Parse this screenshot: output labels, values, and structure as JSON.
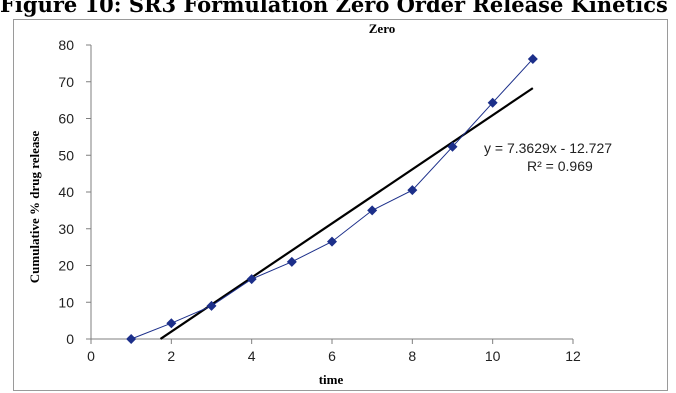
{
  "figure_caption": "Figure 10: SR3 Formulation Zero Order Release Kinetics",
  "chart_data": {
    "type": "scatter",
    "title": "Zero",
    "xlabel": "time",
    "ylabel": "Cumulative % drug release",
    "xlim": [
      0,
      12
    ],
    "ylim": [
      0,
      80
    ],
    "x_ticks": [
      0,
      2,
      4,
      6,
      8,
      10,
      12
    ],
    "y_ticks": [
      0,
      10,
      20,
      30,
      40,
      50,
      60,
      70,
      80
    ],
    "grid": false,
    "series": [
      {
        "x": [
          1,
          2,
          3,
          4,
          5,
          6,
          7,
          8,
          9,
          10,
          11
        ],
        "y": [
          0,
          4.3,
          9,
          16.3,
          21,
          26.5,
          35,
          40.5,
          52.3,
          64.3,
          76.2
        ],
        "color": "#1c2f8a",
        "marker": "diamond",
        "line": "straight"
      }
    ],
    "trendline": {
      "type": "linear",
      "slope": 7.3629,
      "intercept": -12.727,
      "x_range": [
        1.73,
        11
      ],
      "color": "#000000",
      "equation": "y = 7.3629x - 12.727",
      "r_squared": "R² = 0.969"
    }
  }
}
